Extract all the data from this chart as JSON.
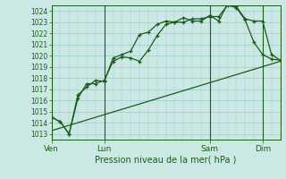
{
  "title": "",
  "xlabel": "Pression niveau de la mer( hPa )",
  "ylim": [
    1012.5,
    1024.5
  ],
  "yticks": [
    1013,
    1014,
    1015,
    1016,
    1017,
    1018,
    1019,
    1020,
    1021,
    1022,
    1023,
    1024
  ],
  "bg_color": "#cce8e4",
  "grid_color": "#99ccc8",
  "line_color": "#1a5c1a",
  "day_labels": [
    "Ven",
    "Lun",
    "Sam",
    "Dim"
  ],
  "day_positions": [
    0,
    6,
    18,
    24
  ],
  "xlim": [
    0,
    26
  ],
  "line1_x": [
    0,
    1,
    2,
    3,
    4,
    5,
    6,
    7,
    8,
    9,
    10,
    11,
    12,
    13,
    14,
    15,
    16,
    17,
    18,
    19,
    20,
    21,
    22,
    23,
    24,
    25,
    26
  ],
  "line1_y": [
    1014.5,
    1014.1,
    1013.0,
    1016.5,
    1017.2,
    1017.8,
    1017.7,
    1019.8,
    1020.1,
    1020.4,
    1021.9,
    1022.1,
    1022.8,
    1023.1,
    1023.0,
    1023.4,
    1023.1,
    1023.1,
    1023.6,
    1023.1,
    1024.6,
    1024.4,
    1023.3,
    1023.1,
    1023.1,
    1020.1,
    1019.6
  ],
  "line2_x": [
    0,
    1,
    2,
    3,
    4,
    5,
    6,
    7,
    8,
    9,
    10,
    11,
    12,
    13,
    14,
    15,
    16,
    17,
    18,
    19,
    20,
    21,
    22,
    23,
    24,
    25,
    26
  ],
  "line2_y": [
    1014.5,
    1014.1,
    1013.0,
    1016.2,
    1017.5,
    1017.5,
    1017.8,
    1019.5,
    1019.9,
    1019.8,
    1019.5,
    1020.5,
    1021.8,
    1022.8,
    1023.0,
    1023.0,
    1023.3,
    1023.3,
    1023.5,
    1023.5,
    1024.5,
    1024.3,
    1023.2,
    1021.2,
    1020.1,
    1019.7,
    1019.6
  ],
  "line3_x": [
    0,
    26
  ],
  "line3_y": [
    1013.3,
    1019.5
  ],
  "vlines": [
    0,
    6,
    18,
    24
  ]
}
